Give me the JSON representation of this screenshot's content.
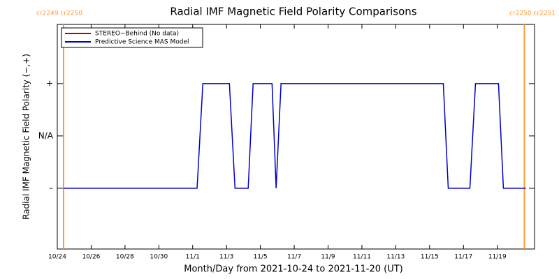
{
  "chart_data": {
    "type": "line",
    "title": "Radial IMF Magnetic Field Polarity Comparisons",
    "xlabel": "Month/Day from 2021-10-24 to 2021-11-20 (UT)",
    "ylabel": "Radial IMF Magnetic Field Polarity (−,+)",
    "x": [
      0.37,
      8.26,
      8.6,
      10.17,
      10.5,
      11.28,
      11.57,
      12.69,
      12.93,
      13.22,
      22.81,
      23.1,
      24.38,
      24.71,
      26.07,
      26.36,
      27.69
    ],
    "series": [
      {
        "name": "STEREO−Behind (No data)",
        "color": "#c00000",
        "values": [
          null,
          null,
          null,
          null,
          null,
          null,
          null,
          null,
          null,
          null,
          null,
          null,
          null,
          null,
          null,
          null,
          null
        ]
      },
      {
        "name": "Predictive Science MAS Model",
        "color": "#0000cc",
        "values": [
          -1,
          -1,
          1,
          1,
          -1,
          -1,
          1,
          1,
          -1,
          1,
          1,
          -1,
          -1,
          1,
          1,
          -1,
          -1
        ]
      }
    ],
    "xlim": [
      0,
      28.2
    ],
    "xticks": [
      {
        "value": 0,
        "label": "10/24"
      },
      {
        "value": 2,
        "label": "10/26"
      },
      {
        "value": 4,
        "label": "10/28"
      },
      {
        "value": 6,
        "label": "10/30"
      },
      {
        "value": 8,
        "label": "11/1"
      },
      {
        "value": 10,
        "label": "11/3"
      },
      {
        "value": 12,
        "label": "11/5"
      },
      {
        "value": 14,
        "label": "11/7"
      },
      {
        "value": 16,
        "label": "11/9"
      },
      {
        "value": 18,
        "label": "11/11"
      },
      {
        "value": 20,
        "label": "11/13"
      },
      {
        "value": 22,
        "label": "11/15"
      },
      {
        "value": 24,
        "label": "11/17"
      },
      {
        "value": 26,
        "label": "11/19"
      }
    ],
    "ylim": [
      -2.16,
      2.13
    ],
    "yticks": [
      {
        "value": 1,
        "label": "+"
      },
      {
        "value": 0,
        "label": "N/A"
      },
      {
        "value": -1,
        "label": "–"
      }
    ],
    "rotation_lines": [
      {
        "x": 0.37,
        "label": "cr2249 cr2250"
      },
      {
        "x": 27.6,
        "label": "cr2250 cr2251"
      }
    ],
    "rotation_color": "#ff9933",
    "legend": "upper left"
  }
}
